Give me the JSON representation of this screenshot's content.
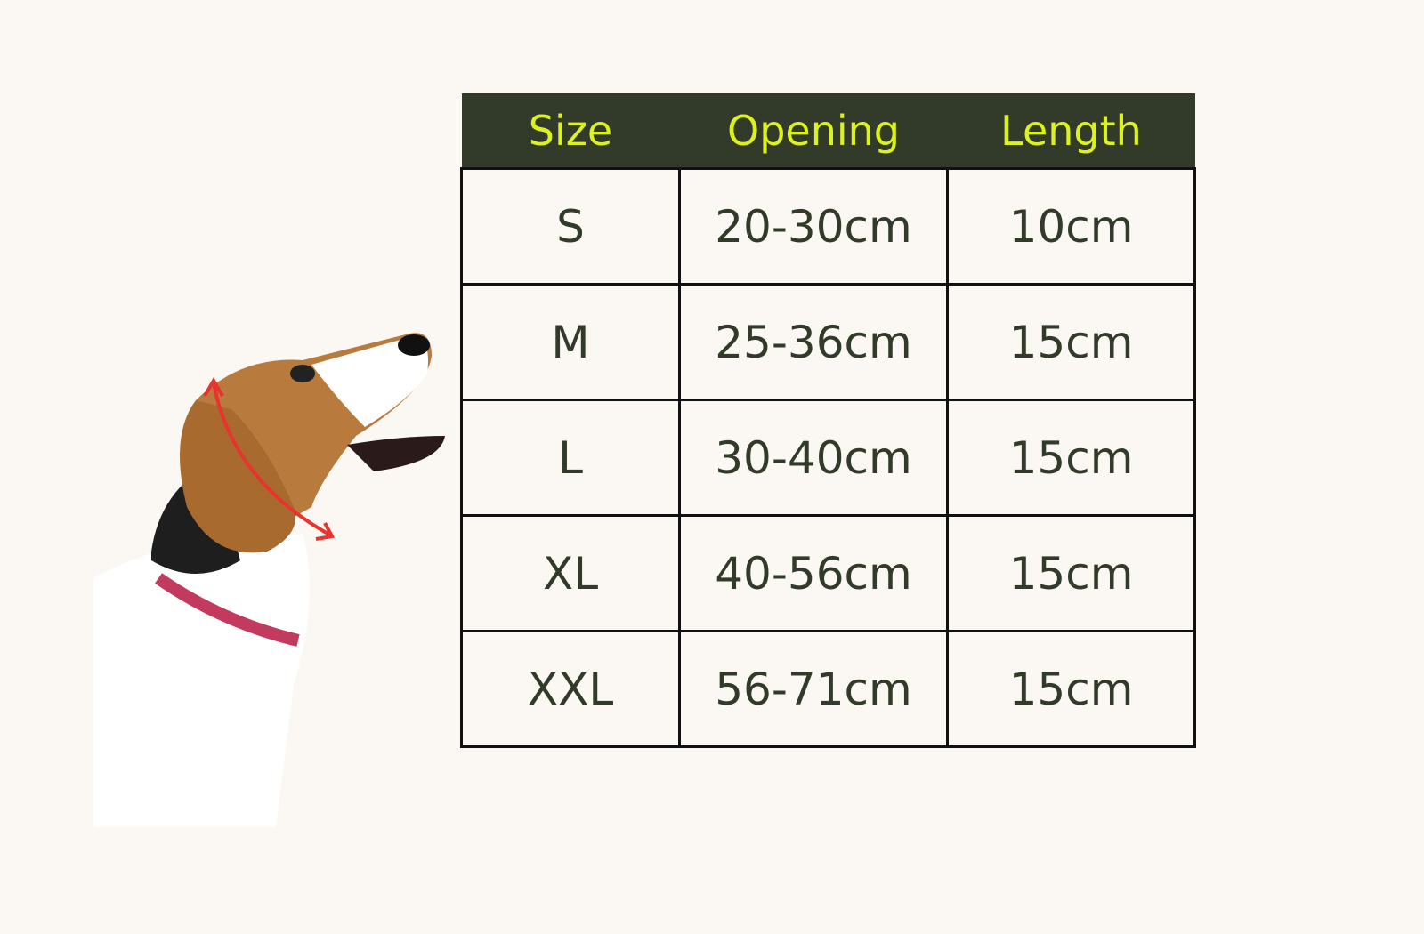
{
  "colors": {
    "header_bg": "#323b2a",
    "header_text": "#dcf21f",
    "cell_text": "#323b2a",
    "arrow": "#e8332f",
    "background": "#fbf8f4"
  },
  "image": {
    "subject": "dog-illustration",
    "icon": "measure-arrow-icon"
  },
  "table": {
    "headers": [
      "Size",
      "Opening",
      "Length"
    ],
    "rows": [
      [
        "S",
        "20-30cm",
        "10cm"
      ],
      [
        "M",
        "25-36cm",
        "15cm"
      ],
      [
        "L",
        "30-40cm",
        "15cm"
      ],
      [
        "XL",
        "40-56cm",
        "15cm"
      ],
      [
        "XXL",
        "56-71cm",
        "15cm"
      ]
    ]
  }
}
